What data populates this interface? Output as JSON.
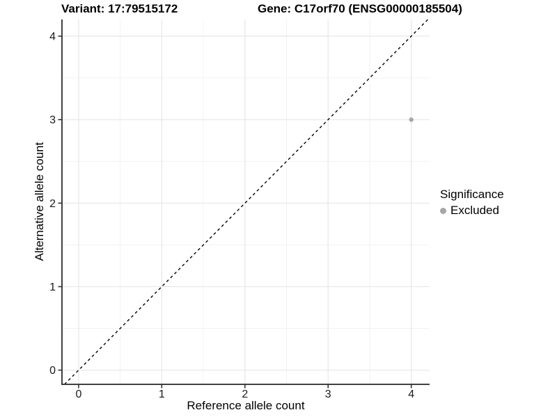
{
  "titles": {
    "variant": "Variant: 17:79515172",
    "gene": "Gene: C17orf70 (ENSG00000185504)"
  },
  "legend": {
    "title": "Significance",
    "items": [
      {
        "label": "Excluded",
        "color": "#a6a6a6"
      }
    ]
  },
  "chart_data": {
    "type": "scatter",
    "title_left": "Variant: 17:79515172",
    "title_right": "Gene: C17orf70 (ENSG00000185504)",
    "xlabel": "Reference allele count",
    "ylabel": "Alternative allele count",
    "xlim": [
      -0.2,
      4.22
    ],
    "ylim": [
      -0.17,
      4.2
    ],
    "xticks": [
      0,
      1,
      2,
      3,
      4
    ],
    "yticks": [
      0,
      1,
      2,
      3,
      4
    ],
    "x_minor": [
      0.5,
      1.5,
      2.5,
      3.5
    ],
    "y_minor": [
      0.5,
      1.5,
      2.5,
      3.5
    ],
    "grid": "major+minor",
    "legend_position": "right",
    "series": [
      {
        "name": "Excluded",
        "color": "#a6a6a6",
        "points": [
          [
            4,
            3
          ]
        ]
      }
    ],
    "reference_line": {
      "type": "identity",
      "style": "dashed",
      "color": "#000000"
    },
    "colors": {
      "grid_major": "#e6e6e6",
      "grid_minor": "#f2f2f2",
      "axis_line": "#404040",
      "tick_mark": "#333333",
      "tick_label": "#1a1a1a"
    }
  }
}
